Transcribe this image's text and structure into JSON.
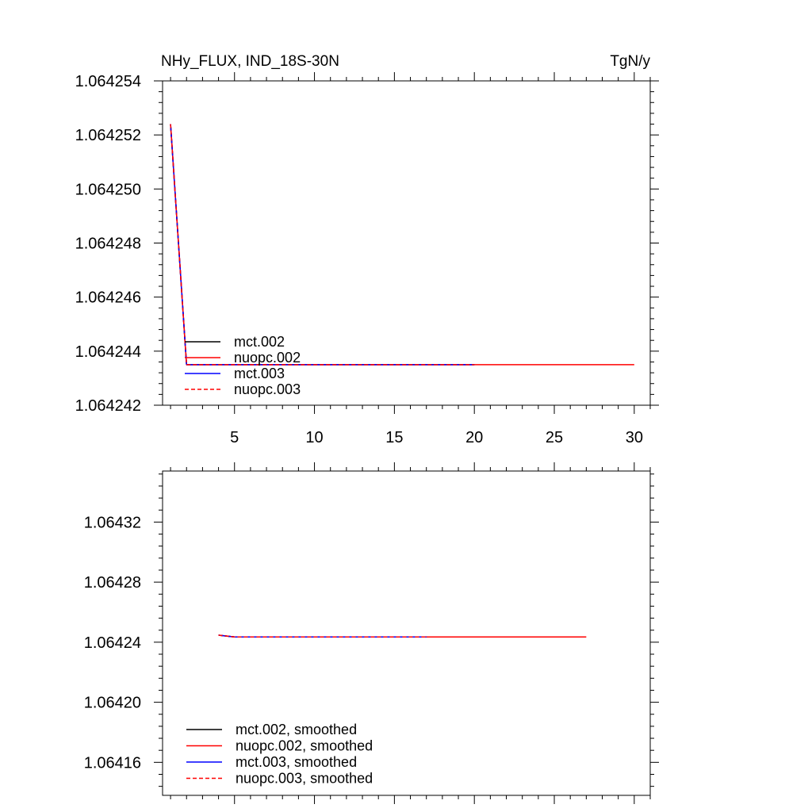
{
  "chart_data": [
    {
      "type": "line",
      "title": "NHy_FLUX, IND_18S-30N",
      "units": "TgN/y",
      "xlim": [
        0.5,
        31
      ],
      "ylim": [
        1.064242,
        1.064254
      ],
      "x_ticks": [
        5,
        10,
        15,
        20,
        25,
        30
      ],
      "x_tick_labels": [
        "5",
        "10",
        "15",
        "20",
        "25",
        "30"
      ],
      "y_ticks": [
        1.064242,
        1.064244,
        1.064246,
        1.064248,
        1.06425,
        1.064252,
        1.064254
      ],
      "y_tick_labels": [
        "1.064242",
        "1.064244",
        "1.064246",
        "1.064248",
        "1.064250",
        "1.064252",
        "1.064254"
      ],
      "legend_position": "bottom-left",
      "series": [
        {
          "name": "mct.002",
          "color": "#000000",
          "dash": "solid",
          "x": [
            1,
            2,
            20
          ],
          "y": [
            1.0642524,
            1.0642435,
            1.0642435
          ]
        },
        {
          "name": "nuopc.002",
          "color": "#ff0000",
          "dash": "solid",
          "x": [
            1,
            2,
            30
          ],
          "y": [
            1.0642524,
            1.0642435,
            1.0642435
          ]
        },
        {
          "name": "mct.003",
          "color": "#0000ff",
          "dash": "solid",
          "x": [
            1,
            2,
            20
          ],
          "y": [
            1.0642524,
            1.0642435,
            1.0642435
          ]
        },
        {
          "name": "nuopc.003",
          "color": "#ff0000",
          "dash": "dashed",
          "x": [
            1,
            2,
            20
          ],
          "y": [
            1.0642524,
            1.0642435,
            1.0642435
          ]
        }
      ]
    },
    {
      "type": "line",
      "xlim": [
        0.5,
        31
      ],
      "ylim": [
        1.064138,
        1.064354
      ],
      "x_ticks": [
        5,
        10,
        15,
        20,
        25,
        30
      ],
      "y_ticks": [
        1.06416,
        1.0642,
        1.06424,
        1.06428,
        1.06432
      ],
      "y_tick_labels": [
        "1.06416",
        "1.06420",
        "1.06424",
        "1.06428",
        "1.06432"
      ],
      "legend_position": "bottom-left",
      "series": [
        {
          "name": "mct.002, smoothed",
          "color": "#000000",
          "dash": "solid",
          "x": [
            4,
            5,
            17
          ],
          "y": [
            1.0642447,
            1.0642435,
            1.0642435
          ]
        },
        {
          "name": "nuopc.002, smoothed",
          "color": "#ff0000",
          "dash": "solid",
          "x": [
            4,
            5,
            27
          ],
          "y": [
            1.0642447,
            1.0642435,
            1.0642435
          ]
        },
        {
          "name": "mct.003, smoothed",
          "color": "#0000ff",
          "dash": "solid",
          "x": [
            4,
            5,
            17
          ],
          "y": [
            1.0642447,
            1.0642435,
            1.0642435
          ]
        },
        {
          "name": "nuopc.003, smoothed",
          "color": "#ff0000",
          "dash": "dashed",
          "x": [
            4,
            5,
            17
          ],
          "y": [
            1.0642447,
            1.0642435,
            1.0642435
          ]
        }
      ]
    }
  ]
}
